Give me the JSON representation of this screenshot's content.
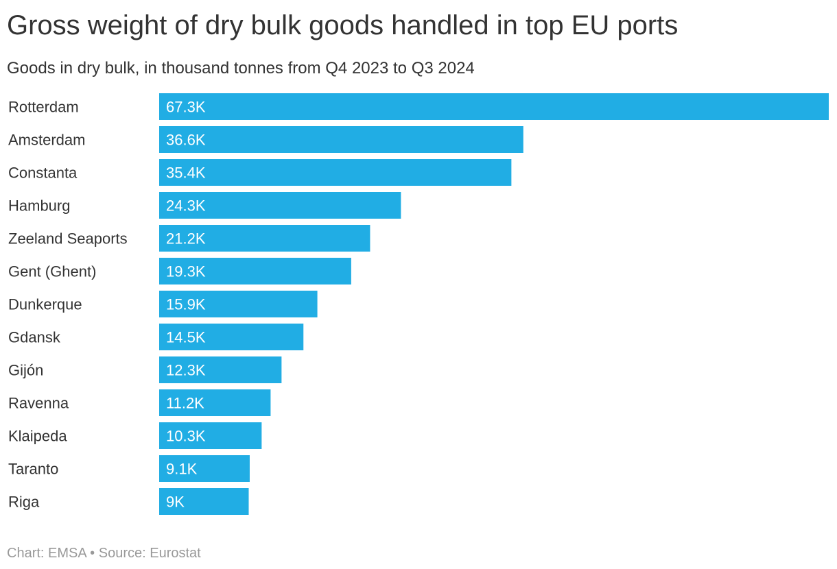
{
  "header": {
    "title": "Gross weight of dry bulk goods handled in top EU ports",
    "subtitle": "Goods in dry bulk, in thousand tonnes from Q4 2023 to Q3 2024"
  },
  "footer": {
    "credit": "Chart: EMSA",
    "separator": "•",
    "source": "Source: Eurostat"
  },
  "colors": {
    "bar": "#21ade4",
    "text": "#333333",
    "footer": "#999999"
  },
  "chart_data": {
    "type": "bar",
    "orientation": "horizontal",
    "title": "Gross weight of dry bulk goods handled in top EU ports",
    "subtitle": "Goods in dry bulk, in thousand tonnes from Q4 2023 to Q3 2024",
    "xlabel": "",
    "ylabel": "",
    "grid": false,
    "legend": "none",
    "xlim": [
      0,
      67.3
    ],
    "categories": [
      "Rotterdam",
      "Amsterdam",
      "Constanta",
      "Hamburg",
      "Zeeland Seaports",
      "Gent (Ghent)",
      "Dunkerque",
      "Gdansk",
      "Gijón",
      "Ravenna",
      "Klaipeda",
      "Taranto",
      "Riga"
    ],
    "values": [
      67.3,
      36.6,
      35.4,
      24.3,
      21.2,
      19.3,
      15.9,
      14.5,
      12.3,
      11.2,
      10.3,
      9.1,
      9.0
    ],
    "value_labels": [
      "67.3K",
      "36.6K",
      "35.4K",
      "24.3K",
      "21.2K",
      "19.3K",
      "15.9K",
      "14.5K",
      "12.3K",
      "11.2K",
      "10.3K",
      "9.1K",
      "9K"
    ]
  }
}
